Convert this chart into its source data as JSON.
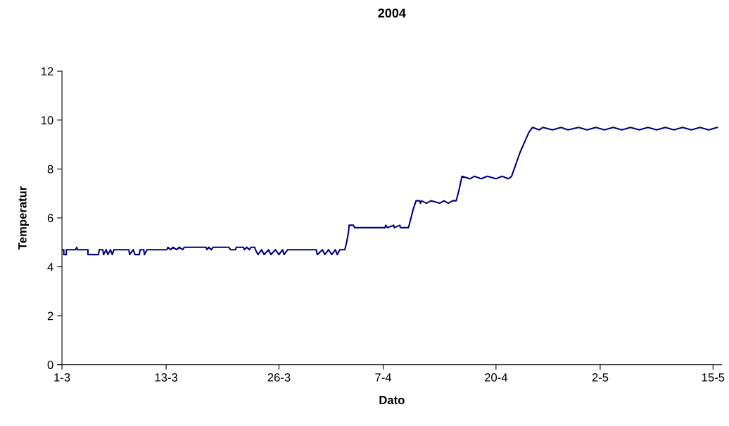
{
  "chart_data": {
    "type": "line",
    "title": "2004",
    "xlabel": "Dato",
    "ylabel": "Temperatur",
    "x": [
      "2004-03-01T00:00",
      "2004-03-01T05:00",
      "2004-03-01T05:00",
      "2004-03-01T12:00",
      "2004-03-01T12:00",
      "2004-03-02T14:00",
      "2004-03-02T17:00",
      "2004-03-02T19:00",
      "2004-03-04T00:00",
      "2004-03-04T00:00",
      "2004-03-05T05:00",
      "2004-03-05T07:00",
      "2004-03-05T17:00",
      "2004-03-05T19:00",
      "2004-03-06T02:00",
      "2004-03-06T07:00",
      "2004-03-06T14:00",
      "2004-03-06T19:00",
      "2004-03-07T00:00",
      "2004-03-08T17:00",
      "2004-03-08T19:00",
      "2004-03-09T05:00",
      "2004-03-09T10:00",
      "2004-03-09T22:00",
      "2004-03-10T00:00",
      "2004-03-10T10:00",
      "2004-03-10T12:00",
      "2004-03-10T19:00",
      "2004-03-13T02:00",
      "2004-03-13T05:00",
      "2004-03-13T12:00",
      "2004-03-13T19:00",
      "2004-03-14T05:00",
      "2004-03-14T12:00",
      "2004-03-14T22:00",
      "2004-03-15T02:00",
      "2004-03-17T14:00",
      "2004-03-17T17:00",
      "2004-03-17T22:00",
      "2004-03-18T05:00",
      "2004-03-18T10:00",
      "2004-03-20T05:00",
      "2004-03-20T10:00",
      "2004-03-21T00:00",
      "2004-03-21T02:00",
      "2004-03-21T22:00",
      "2004-03-22T00:00",
      "2004-03-22T07:00",
      "2004-03-22T14:00",
      "2004-03-22T19:00",
      "2004-03-23T05:00",
      "2004-03-23T07:00",
      "2004-03-23T14:00",
      "2004-03-24T00:00",
      "2004-03-24T07:00",
      "2004-03-24T19:00",
      "2004-03-25T02:00",
      "2004-03-25T14:00",
      "2004-03-26T00:00",
      "2004-03-26T10:00",
      "2004-03-26T14:00",
      "2004-03-27T00:00",
      "2004-03-30T07:00",
      "2004-03-30T10:00",
      "2004-03-31T00:00",
      "2004-03-31T07:00",
      "2004-03-31T17:00",
      "2004-04-01T02:00",
      "2004-04-01T12:00",
      "2004-04-01T17:00",
      "2004-04-02T00:00",
      "2004-04-02T14:00",
      "2004-04-02T19:00",
      "2004-04-03T00:00",
      "2004-04-03T02:00",
      "2004-04-03T14:00",
      "2004-04-03T17:00",
      "2004-04-07T05:00",
      "2004-04-07T07:00",
      "2004-04-07T12:00",
      "2004-04-08T05:00",
      "2004-04-08T07:00",
      "2004-04-08T22:00",
      "2004-04-09T00:00",
      "2004-04-09T22:00",
      "2004-04-10T05:00",
      "2004-04-10T12:00",
      "2004-04-10T19:00",
      "2004-04-11T05:00",
      "2004-04-11T07:00",
      "2004-04-11T10:00",
      "2004-04-12T00:00",
      "2004-04-12T12:00",
      "2004-04-13T12:00",
      "2004-04-14T00:00",
      "2004-04-14T12:00",
      "2004-04-15T00:00",
      "2004-04-15T10:00",
      "2004-04-15T17:00",
      "2004-04-16T02:00",
      "2004-04-17T00:00",
      "2004-04-17T12:00",
      "2004-04-18T07:00",
      "2004-04-19T00:00",
      "2004-04-20T00:00",
      "2004-04-20T17:00",
      "2004-04-21T10:00",
      "2004-04-21T19:00",
      "2004-04-22T07:00",
      "2004-04-22T19:00",
      "2004-04-23T07:00",
      "2004-04-23T19:00",
      "2004-04-24T05:00",
      "2004-04-25T00:00",
      "2004-04-25T10:00",
      "2004-04-26T12:00",
      "2004-04-27T12:00",
      "2004-04-28T07:00",
      "2004-04-29T12:00",
      "2004-04-30T12:00",
      "2004-05-01T12:00",
      "2004-05-02T12:00",
      "2004-05-03T12:00",
      "2004-05-04T12:00",
      "2004-05-05T12:00",
      "2004-05-06T12:00",
      "2004-05-07T12:00",
      "2004-05-08T12:00",
      "2004-05-09T12:00",
      "2004-05-10T12:00",
      "2004-05-11T12:00",
      "2004-05-12T12:00",
      "2004-05-13T12:00",
      "2004-05-14T12:00",
      "2004-05-15T12:00"
    ],
    "series": [
      {
        "color": "#000080",
        "values": [
          4.7,
          4.7,
          4.5,
          4.5,
          4.7,
          4.7,
          4.8,
          4.7,
          4.7,
          4.5,
          4.5,
          4.7,
          4.7,
          4.5,
          4.7,
          4.5,
          4.7,
          4.5,
          4.7,
          4.7,
          4.5,
          4.7,
          4.5,
          4.5,
          4.7,
          4.7,
          4.5,
          4.7,
          4.7,
          4.8,
          4.7,
          4.8,
          4.7,
          4.8,
          4.7,
          4.8,
          4.8,
          4.7,
          4.8,
          4.7,
          4.8,
          4.8,
          4.7,
          4.7,
          4.8,
          4.8,
          4.7,
          4.8,
          4.7,
          4.8,
          4.8,
          4.7,
          4.5,
          4.7,
          4.5,
          4.7,
          4.5,
          4.7,
          4.5,
          4.7,
          4.5,
          4.7,
          4.7,
          4.5,
          4.7,
          4.5,
          4.7,
          4.5,
          4.7,
          4.5,
          4.7,
          4.7,
          5.0,
          5.4,
          5.7,
          5.7,
          5.6,
          5.6,
          5.7,
          5.6,
          5.7,
          5.6,
          5.7,
          5.6,
          5.6,
          6.0,
          6.4,
          6.7,
          6.7,
          6.6,
          6.7,
          6.6,
          6.7,
          6.6,
          6.7,
          6.6,
          6.7,
          6.7,
          7.1,
          7.7,
          7.6,
          7.7,
          7.6,
          7.7,
          7.6,
          7.7,
          7.6,
          7.7,
          8.2,
          8.7,
          9.1,
          9.5,
          9.7,
          9.6,
          9.7,
          9.6,
          9.7,
          9.6,
          9.7,
          9.6,
          9.7,
          9.6,
          9.7,
          9.6,
          9.7,
          9.6,
          9.7,
          9.6,
          9.7,
          9.6,
          9.7,
          9.6,
          9.7,
          9.6,
          9.7
        ]
      }
    ],
    "xlim": [
      "2004-03-01",
      "2004-05-16"
    ],
    "xticks": [
      {
        "value": "2004-03-01",
        "label": "1-3"
      },
      {
        "value": "2004-03-13",
        "label": "13-3"
      },
      {
        "value": "2004-03-26",
        "label": "26-3"
      },
      {
        "value": "2004-04-07",
        "label": "7-4"
      },
      {
        "value": "2004-04-20",
        "label": "20-4"
      },
      {
        "value": "2004-05-02",
        "label": "2-5"
      },
      {
        "value": "2004-05-15",
        "label": "15-5"
      }
    ],
    "ylim": [
      0,
      12
    ],
    "yticks": [
      0,
      2,
      4,
      6,
      8,
      10,
      12
    ],
    "grid": false,
    "line_style": "solid"
  }
}
